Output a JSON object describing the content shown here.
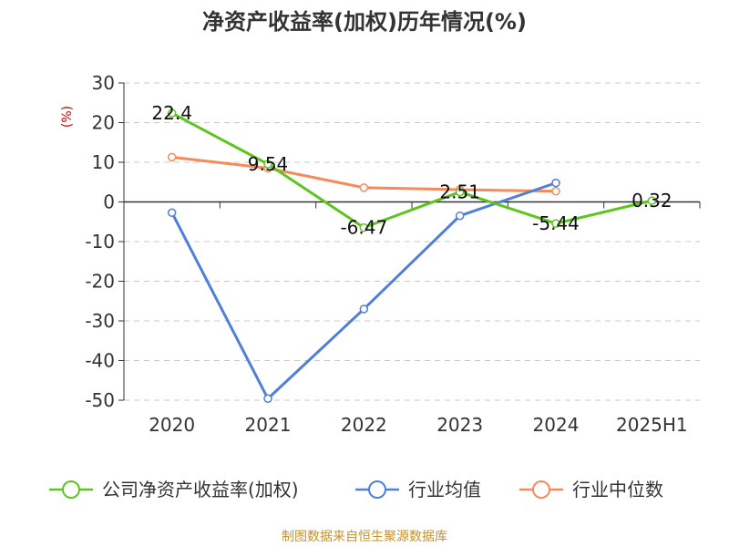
{
  "source_note": "制图数据来自恒生聚源数据库",
  "colors": {
    "company": "#5ec520",
    "industry_avg": "#4f7fd6",
    "industry_median": "#f58a5a",
    "grid": "#c8c8c8",
    "axis": "#333333",
    "unit": "#cc0000",
    "source": "#c8912a"
  },
  "chart_data": {
    "type": "line",
    "title": "净资产收益率(加权)历年情况(%)",
    "ylabel": "(%)",
    "xlabel": "",
    "categories": [
      "2020",
      "2021",
      "2022",
      "2023",
      "2024",
      "2025H1"
    ],
    "yticks": [
      "30",
      "20",
      "10",
      "0",
      "-10",
      "-20",
      "-30",
      "-40",
      "-50"
    ],
    "ylim": [
      -50,
      30
    ],
    "grid": true,
    "legend_position": "bottom",
    "series": [
      {
        "name": "公司净资产收益率(加权)",
        "values": [
          22.4,
          9.54,
          -6.47,
          2.51,
          -5.44,
          0.32
        ],
        "labels": [
          "22.4",
          "9.54",
          "-6.47",
          "2.51",
          "-5.44",
          "0.32"
        ]
      },
      {
        "name": "行业均值",
        "values": [
          -2.7,
          -49.6,
          -27.0,
          -3.5,
          4.8,
          null
        ]
      },
      {
        "name": "行业中位数",
        "values": [
          11.3,
          8.5,
          3.6,
          3.1,
          2.7,
          null
        ]
      }
    ]
  }
}
